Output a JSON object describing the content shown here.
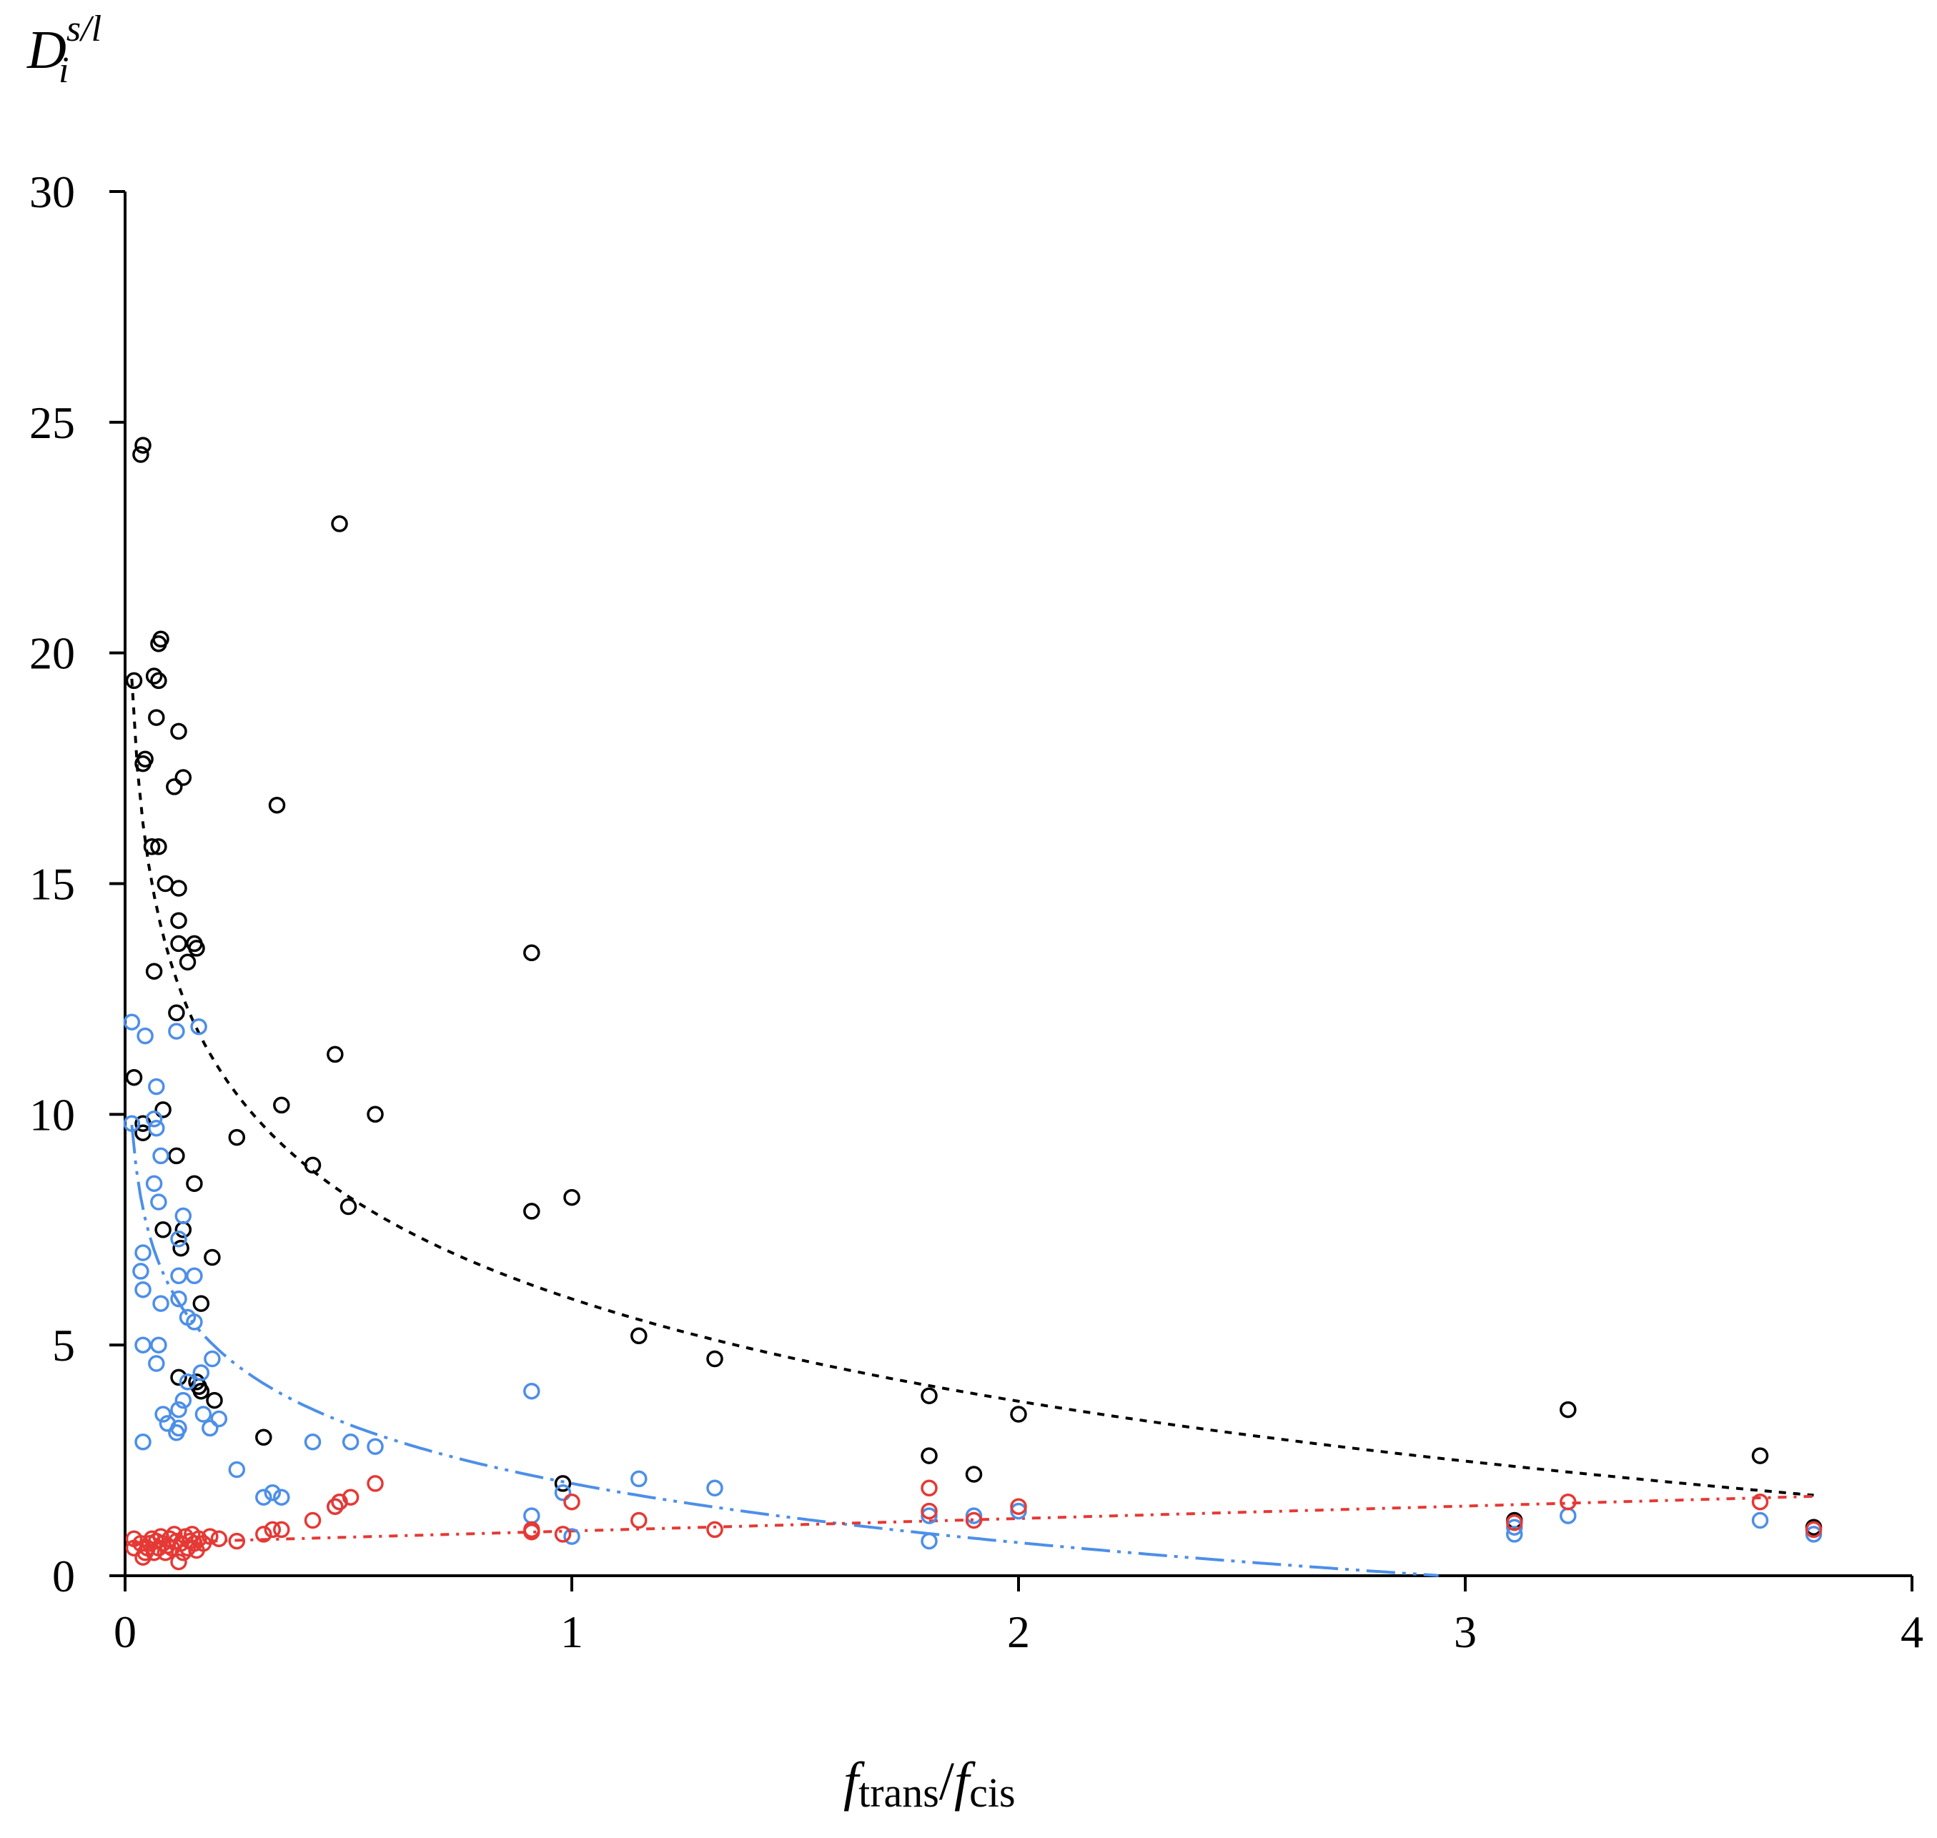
{
  "chart_data": {
    "type": "scatter",
    "title": "",
    "ylabel": {
      "main": "D",
      "sub": "i",
      "sup": "s/l"
    },
    "xlabel": {
      "num_main": "f",
      "num_sub": "trans",
      "slash": "/",
      "den_main": "f",
      "den_sub": "cis"
    },
    "xlim": [
      0,
      4
    ],
    "ylim": [
      0,
      30
    ],
    "x_ticks": [
      0,
      1,
      2,
      3,
      4
    ],
    "y_ticks": [
      0,
      5,
      10,
      15,
      20,
      25,
      30
    ],
    "x_tick_labels": [
      "0",
      "1",
      "2",
      "3",
      "4"
    ],
    "y_tick_labels": [
      "0",
      "5",
      "10",
      "15",
      "20",
      "25",
      "30"
    ],
    "grid": false,
    "series": [
      {
        "name": "black",
        "color": "#000000",
        "points": [
          [
            0.04,
            24.5
          ],
          [
            0.035,
            24.3
          ],
          [
            0.48,
            22.8
          ],
          [
            0.08,
            20.3
          ],
          [
            0.075,
            20.2
          ],
          [
            0.065,
            19.5
          ],
          [
            0.075,
            19.4
          ],
          [
            0.02,
            19.4
          ],
          [
            0.07,
            18.6
          ],
          [
            0.12,
            18.3
          ],
          [
            0.045,
            17.7
          ],
          [
            0.04,
            17.6
          ],
          [
            0.13,
            17.3
          ],
          [
            0.11,
            17.1
          ],
          [
            0.34,
            16.7
          ],
          [
            0.06,
            15.8
          ],
          [
            0.075,
            15.8
          ],
          [
            0.09,
            15.0
          ],
          [
            0.12,
            14.9
          ],
          [
            0.12,
            14.2
          ],
          [
            0.12,
            13.7
          ],
          [
            0.155,
            13.7
          ],
          [
            0.16,
            13.6
          ],
          [
            0.91,
            13.5
          ],
          [
            0.14,
            13.3
          ],
          [
            0.065,
            13.1
          ],
          [
            0.115,
            12.2
          ],
          [
            0.47,
            11.3
          ],
          [
            0.02,
            10.8
          ],
          [
            0.35,
            10.2
          ],
          [
            0.085,
            10.1
          ],
          [
            0.56,
            10.0
          ],
          [
            0.04,
            9.8
          ],
          [
            0.04,
            9.6
          ],
          [
            0.25,
            9.5
          ],
          [
            0.115,
            9.1
          ],
          [
            0.42,
            8.9
          ],
          [
            0.155,
            8.5
          ],
          [
            1.0,
            8.2
          ],
          [
            0.5,
            8.0
          ],
          [
            0.91,
            7.9
          ],
          [
            0.085,
            7.5
          ],
          [
            0.13,
            7.5
          ],
          [
            0.125,
            7.1
          ],
          [
            0.195,
            6.9
          ],
          [
            0.17,
            5.9
          ],
          [
            1.15,
            5.2
          ],
          [
            1.32,
            4.7
          ],
          [
            0.12,
            4.3
          ],
          [
            0.16,
            4.2
          ],
          [
            0.165,
            4.1
          ],
          [
            0.17,
            4.0
          ],
          [
            0.2,
            3.8
          ],
          [
            1.8,
            3.9
          ],
          [
            3.23,
            3.6
          ],
          [
            2.0,
            3.5
          ],
          [
            0.31,
            3.0
          ],
          [
            1.8,
            2.6
          ],
          [
            3.66,
            2.6
          ],
          [
            1.9,
            2.2
          ],
          [
            0.98,
            2.0
          ],
          [
            3.11,
            1.2
          ],
          [
            3.78,
            1.05
          ]
        ]
      },
      {
        "name": "blue",
        "color": "#4d8fe8",
        "points": [
          [
            0.015,
            12.0
          ],
          [
            0.045,
            11.7
          ],
          [
            0.115,
            11.8
          ],
          [
            0.165,
            11.9
          ],
          [
            0.07,
            10.6
          ],
          [
            0.065,
            9.9
          ],
          [
            0.015,
            9.8
          ],
          [
            0.07,
            9.7
          ],
          [
            0.08,
            9.1
          ],
          [
            0.065,
            8.5
          ],
          [
            0.075,
            8.1
          ],
          [
            0.13,
            7.8
          ],
          [
            0.12,
            7.3
          ],
          [
            0.04,
            7.0
          ],
          [
            0.035,
            6.6
          ],
          [
            0.12,
            6.5
          ],
          [
            0.155,
            6.5
          ],
          [
            0.04,
            6.2
          ],
          [
            0.12,
            6.0
          ],
          [
            0.08,
            5.9
          ],
          [
            0.14,
            5.6
          ],
          [
            0.155,
            5.5
          ],
          [
            0.04,
            5.0
          ],
          [
            0.075,
            5.0
          ],
          [
            0.195,
            4.7
          ],
          [
            0.07,
            4.6
          ],
          [
            0.17,
            4.4
          ],
          [
            0.14,
            4.2
          ],
          [
            0.13,
            3.8
          ],
          [
            0.12,
            3.6
          ],
          [
            0.085,
            3.5
          ],
          [
            0.175,
            3.5
          ],
          [
            0.21,
            3.4
          ],
          [
            0.095,
            3.3
          ],
          [
            0.12,
            3.2
          ],
          [
            0.115,
            3.1
          ],
          [
            0.19,
            3.2
          ],
          [
            0.04,
            2.9
          ],
          [
            0.42,
            2.9
          ],
          [
            0.505,
            2.9
          ],
          [
            0.56,
            2.8
          ],
          [
            0.25,
            2.3
          ],
          [
            0.91,
            4.0
          ],
          [
            1.15,
            2.1
          ],
          [
            1.32,
            1.9
          ],
          [
            0.98,
            1.8
          ],
          [
            0.33,
            1.8
          ],
          [
            0.35,
            1.7
          ],
          [
            0.31,
            1.7
          ],
          [
            0.48,
            1.6
          ],
          [
            0.47,
            1.5
          ],
          [
            0.91,
            1.3
          ],
          [
            1.8,
            1.3
          ],
          [
            1.9,
            1.3
          ],
          [
            2.0,
            1.4
          ],
          [
            3.23,
            1.3
          ],
          [
            3.66,
            1.2
          ],
          [
            3.11,
            1.05
          ],
          [
            3.11,
            0.9
          ],
          [
            3.78,
            0.9
          ],
          [
            1.0,
            0.85
          ],
          [
            1.8,
            0.75
          ]
        ]
      },
      {
        "name": "red",
        "color": "#e53935",
        "points": [
          [
            0.02,
            0.8
          ],
          [
            0.02,
            0.6
          ],
          [
            0.035,
            0.7
          ],
          [
            0.04,
            0.4
          ],
          [
            0.045,
            0.5
          ],
          [
            0.05,
            0.6
          ],
          [
            0.055,
            0.7
          ],
          [
            0.06,
            0.8
          ],
          [
            0.065,
            0.5
          ],
          [
            0.07,
            0.75
          ],
          [
            0.075,
            0.6
          ],
          [
            0.08,
            0.85
          ],
          [
            0.085,
            0.7
          ],
          [
            0.09,
            0.5
          ],
          [
            0.095,
            0.65
          ],
          [
            0.1,
            0.8
          ],
          [
            0.105,
            0.6
          ],
          [
            0.11,
            0.9
          ],
          [
            0.115,
            0.75
          ],
          [
            0.12,
            0.3
          ],
          [
            0.125,
            0.7
          ],
          [
            0.13,
            0.5
          ],
          [
            0.135,
            0.85
          ],
          [
            0.14,
            0.6
          ],
          [
            0.145,
            0.75
          ],
          [
            0.15,
            0.9
          ],
          [
            0.155,
            0.7
          ],
          [
            0.16,
            0.55
          ],
          [
            0.165,
            0.8
          ],
          [
            0.175,
            0.7
          ],
          [
            0.19,
            0.85
          ],
          [
            0.21,
            0.8
          ],
          [
            0.25,
            0.75
          ],
          [
            0.31,
            0.9
          ],
          [
            0.33,
            1.0
          ],
          [
            0.35,
            1.0
          ],
          [
            0.42,
            1.2
          ],
          [
            0.47,
            1.5
          ],
          [
            0.48,
            1.6
          ],
          [
            0.505,
            1.7
          ],
          [
            0.56,
            2.0
          ],
          [
            0.91,
            1.0
          ],
          [
            0.91,
            0.95
          ],
          [
            0.98,
            0.9
          ],
          [
            1.0,
            1.6
          ],
          [
            1.15,
            1.2
          ],
          [
            1.32,
            1.0
          ],
          [
            1.8,
            1.9
          ],
          [
            1.8,
            1.4
          ],
          [
            1.9,
            1.2
          ],
          [
            2.0,
            1.5
          ],
          [
            3.11,
            1.15
          ],
          [
            3.23,
            1.6
          ],
          [
            3.66,
            1.6
          ],
          [
            3.78,
            1.0
          ]
        ]
      }
    ],
    "trendlines": [
      {
        "name": "black-trend",
        "color": "#000000",
        "dash": "10,10",
        "model": "ln",
        "a": 6.0,
        "b": -3.2,
        "x_from": 0.015,
        "x_to": 3.78
      },
      {
        "name": "blue-trend",
        "color": "#4d8fe8",
        "dash": "40,10,5,10,5,10",
        "model": "ln",
        "a": 2.0,
        "b": -1.85,
        "x_from": 0.015,
        "x_to": 2.95
      },
      {
        "name": "red-trend",
        "color": "#e53935",
        "dash": "12,10,4,10",
        "model": "linear",
        "slope": 0.27,
        "intercept": 0.7,
        "x_from": 0.015,
        "x_to": 3.78
      }
    ]
  }
}
